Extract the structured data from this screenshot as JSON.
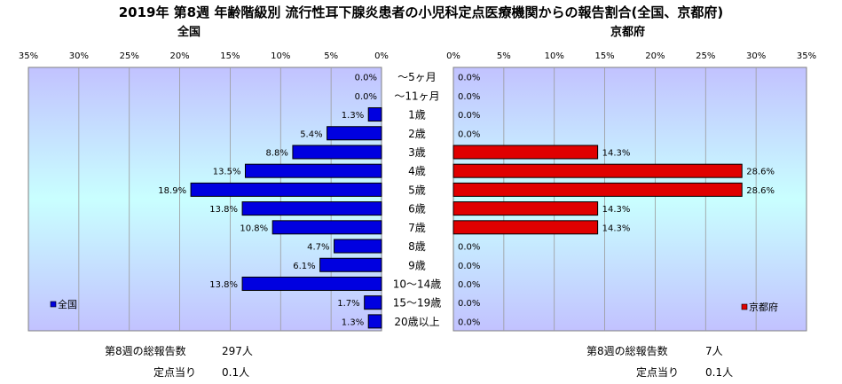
{
  "title": "2019年 第8週 年齢階級別 流行性耳下腺炎患者の小児科定点医療機関からの報告割合(全国、京都府)",
  "chart_data": [
    {
      "type": "bar",
      "orientation": "horizontal",
      "title": "全国",
      "categories": [
        "～5ヶ月",
        "～11ヶ月",
        "1歳",
        "2歳",
        "3歳",
        "4歳",
        "5歳",
        "6歳",
        "7歳",
        "8歳",
        "9歳",
        "10～14歳",
        "15～19歳",
        "20歳以上"
      ],
      "series": [
        {
          "name": "全国",
          "color": "#0000e0",
          "values": [
            0.0,
            0.0,
            1.3,
            5.4,
            8.8,
            13.5,
            18.9,
            13.8,
            10.8,
            4.7,
            6.1,
            13.8,
            1.7,
            1.3
          ],
          "labels": [
            "0.0%",
            "0.0%",
            "1.3%",
            "5.4%",
            "8.8%",
            "13.5%",
            "18.9%",
            "13.8%",
            "10.8%",
            "4.7%",
            "6.1%",
            "13.8%",
            "1.7%",
            "1.3%"
          ]
        }
      ],
      "xlim": [
        0,
        35
      ],
      "xticks": [
        "35%",
        "30%",
        "25%",
        "20%",
        "15%",
        "10%",
        "5%",
        "0%"
      ],
      "direction": "right-to-left",
      "grid": true,
      "legend": "bottom-left"
    },
    {
      "type": "bar",
      "orientation": "horizontal",
      "title": "京都府",
      "categories": [
        "～5ヶ月",
        "～11ヶ月",
        "1歳",
        "2歳",
        "3歳",
        "4歳",
        "5歳",
        "6歳",
        "7歳",
        "8歳",
        "9歳",
        "10～14歳",
        "15～19歳",
        "20歳以上"
      ],
      "series": [
        {
          "name": "京都府",
          "color": "#e00000",
          "values": [
            0.0,
            0.0,
            0.0,
            0.0,
            14.3,
            28.6,
            28.6,
            14.3,
            14.3,
            0.0,
            0.0,
            0.0,
            0.0,
            0.0
          ],
          "labels": [
            "0.0%",
            "0.0%",
            "0.0%",
            "0.0%",
            "14.3%",
            "28.6%",
            "28.6%",
            "14.3%",
            "14.3%",
            "0.0%",
            "0.0%",
            "0.0%",
            "0.0%",
            "0.0%"
          ]
        }
      ],
      "xlim": [
        0,
        35
      ],
      "xticks": [
        "0%",
        "5%",
        "10%",
        "15%",
        "20%",
        "25%",
        "30%",
        "35%"
      ],
      "direction": "left-to-right",
      "grid": true,
      "legend": "bottom-right"
    }
  ],
  "footer": {
    "national": {
      "total_label": "第8週の総報告数",
      "total_value": "297人",
      "per_label": "定点当り",
      "per_value": "0.1人"
    },
    "kyoto": {
      "total_label": "第8週の総報告数",
      "total_value": "7人",
      "per_label": "定点当り",
      "per_value": "0.1人"
    }
  }
}
